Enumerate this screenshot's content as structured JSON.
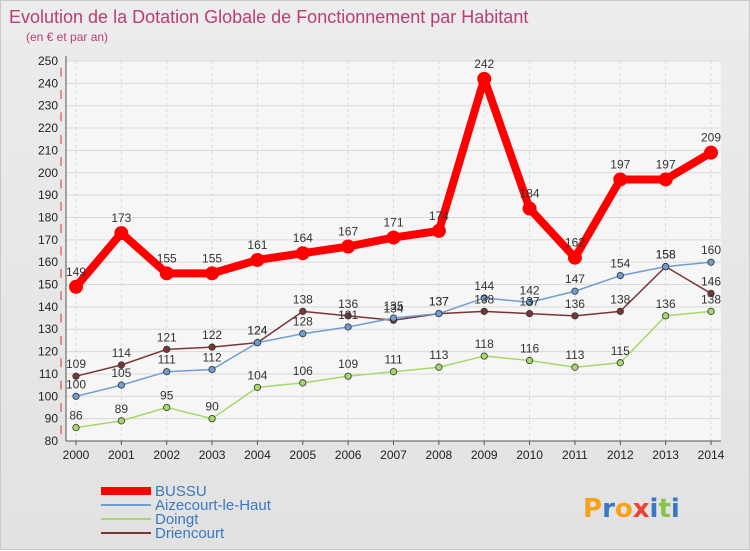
{
  "chart_data": {
    "type": "line",
    "title": "Evolution de la Dotation Globale de Fonctionnement par Habitant",
    "subtitle": "(en € et par an)",
    "x": [
      "2000",
      "2001",
      "2002",
      "2003",
      "2004",
      "2005",
      "2006",
      "2007",
      "2008",
      "2009",
      "2010",
      "2011",
      "2012",
      "2013",
      "2014"
    ],
    "ylim": [
      80,
      250
    ],
    "yticks": [
      80,
      90,
      100,
      110,
      120,
      130,
      140,
      150,
      160,
      170,
      180,
      190,
      200,
      210,
      220,
      230,
      240,
      250
    ],
    "grid": true,
    "legend_position": "bottom-left",
    "series": [
      {
        "name": "BUSSU",
        "color": "#ff0000",
        "values": [
          149,
          173,
          155,
          155,
          161,
          164,
          167,
          171,
          174,
          242,
          184,
          162,
          197,
          197,
          209
        ]
      },
      {
        "name": "Aizecourt-le-Haut",
        "color": "#6e9ed1",
        "values": [
          100,
          105,
          111,
          112,
          124,
          128,
          131,
          135,
          137,
          144,
          142,
          147,
          154,
          158,
          160
        ]
      },
      {
        "name": "Doingt",
        "color": "#a6d96a",
        "values": [
          86,
          89,
          95,
          90,
          104,
          106,
          109,
          111,
          113,
          118,
          116,
          113,
          115,
          136,
          138
        ]
      },
      {
        "name": "Driencourt",
        "color": "#7a3535",
        "values": [
          109,
          114,
          121,
          122,
          124,
          138,
          136,
          134,
          137,
          138,
          137,
          136,
          138,
          158,
          146
        ]
      }
    ]
  },
  "brand": {
    "text": "Proxiti",
    "letters": [
      "P",
      "r",
      "o",
      "x",
      "i",
      "t",
      "i"
    ],
    "colors": [
      "#f6a21b",
      "#3a78c4",
      "#f6a21b",
      "#ef4136",
      "#3a78c4",
      "#8bc34a",
      "#3a78c4"
    ]
  }
}
